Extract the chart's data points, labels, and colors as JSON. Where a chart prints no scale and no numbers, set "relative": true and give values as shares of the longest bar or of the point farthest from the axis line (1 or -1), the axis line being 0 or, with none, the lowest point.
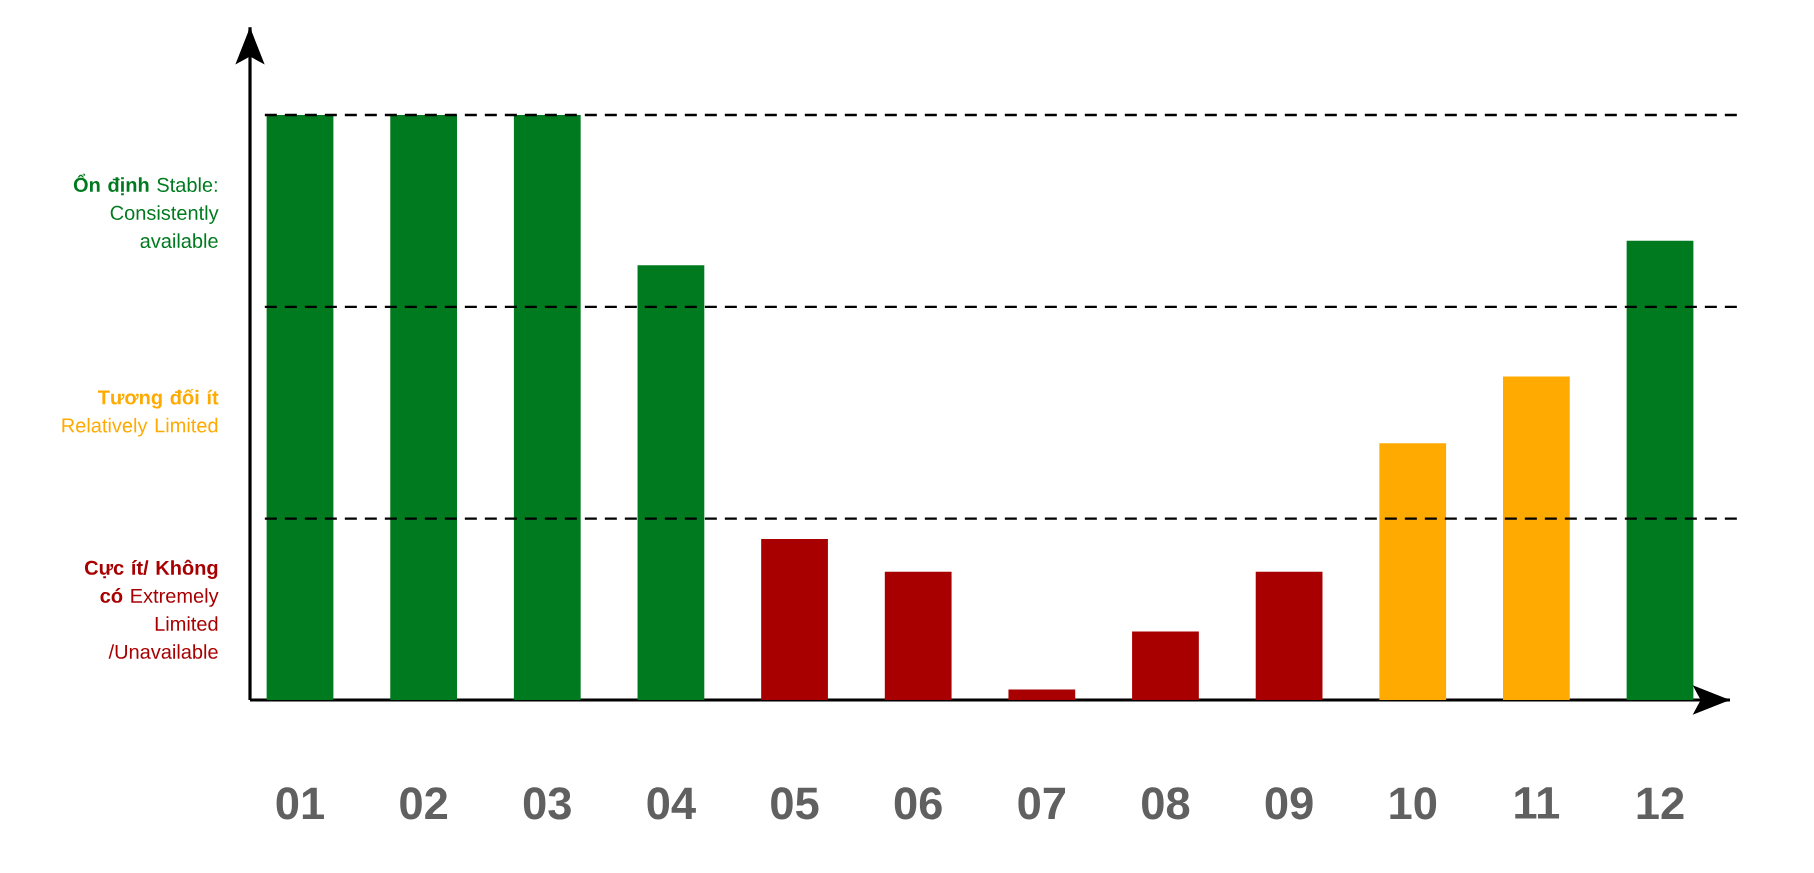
{
  "chart_data": {
    "type": "bar",
    "relative": true,
    "categories": [
      "01",
      "02",
      "03",
      "04",
      "05",
      "06",
      "07",
      "08",
      "09",
      "10",
      "11",
      "12"
    ],
    "values": [
      1,
      1,
      1,
      0.743,
      0.275,
      0.219,
      0.018,
      0.117,
      0.219,
      0.439,
      0.553,
      0.785
    ],
    "colors": [
      "#007a1e",
      "#007a1e",
      "#007a1e",
      "#007a1e",
      "#a80000",
      "#a80000",
      "#a80000",
      "#a80000",
      "#a80000",
      "#ffaa00",
      "#ffaa00",
      "#007a1e"
    ],
    "ref_lines": [
      {
        "axis": "y",
        "value": 1,
        "color": "#000000",
        "line_style": "dashed"
      },
      {
        "axis": "y",
        "value": 0.672,
        "color": "#000000",
        "line_style": "dashed"
      },
      {
        "axis": "y",
        "value": 0.31,
        "color": "#000000",
        "line_style": "dashed"
      }
    ],
    "annotations": [
      "**Ổn định** Stable: Consistently available",
      "**Tương đối ít** Relatively Limited",
      "**Cực ít/ Không có** Extremely Limited /Unavailable"
    ]
  }
}
